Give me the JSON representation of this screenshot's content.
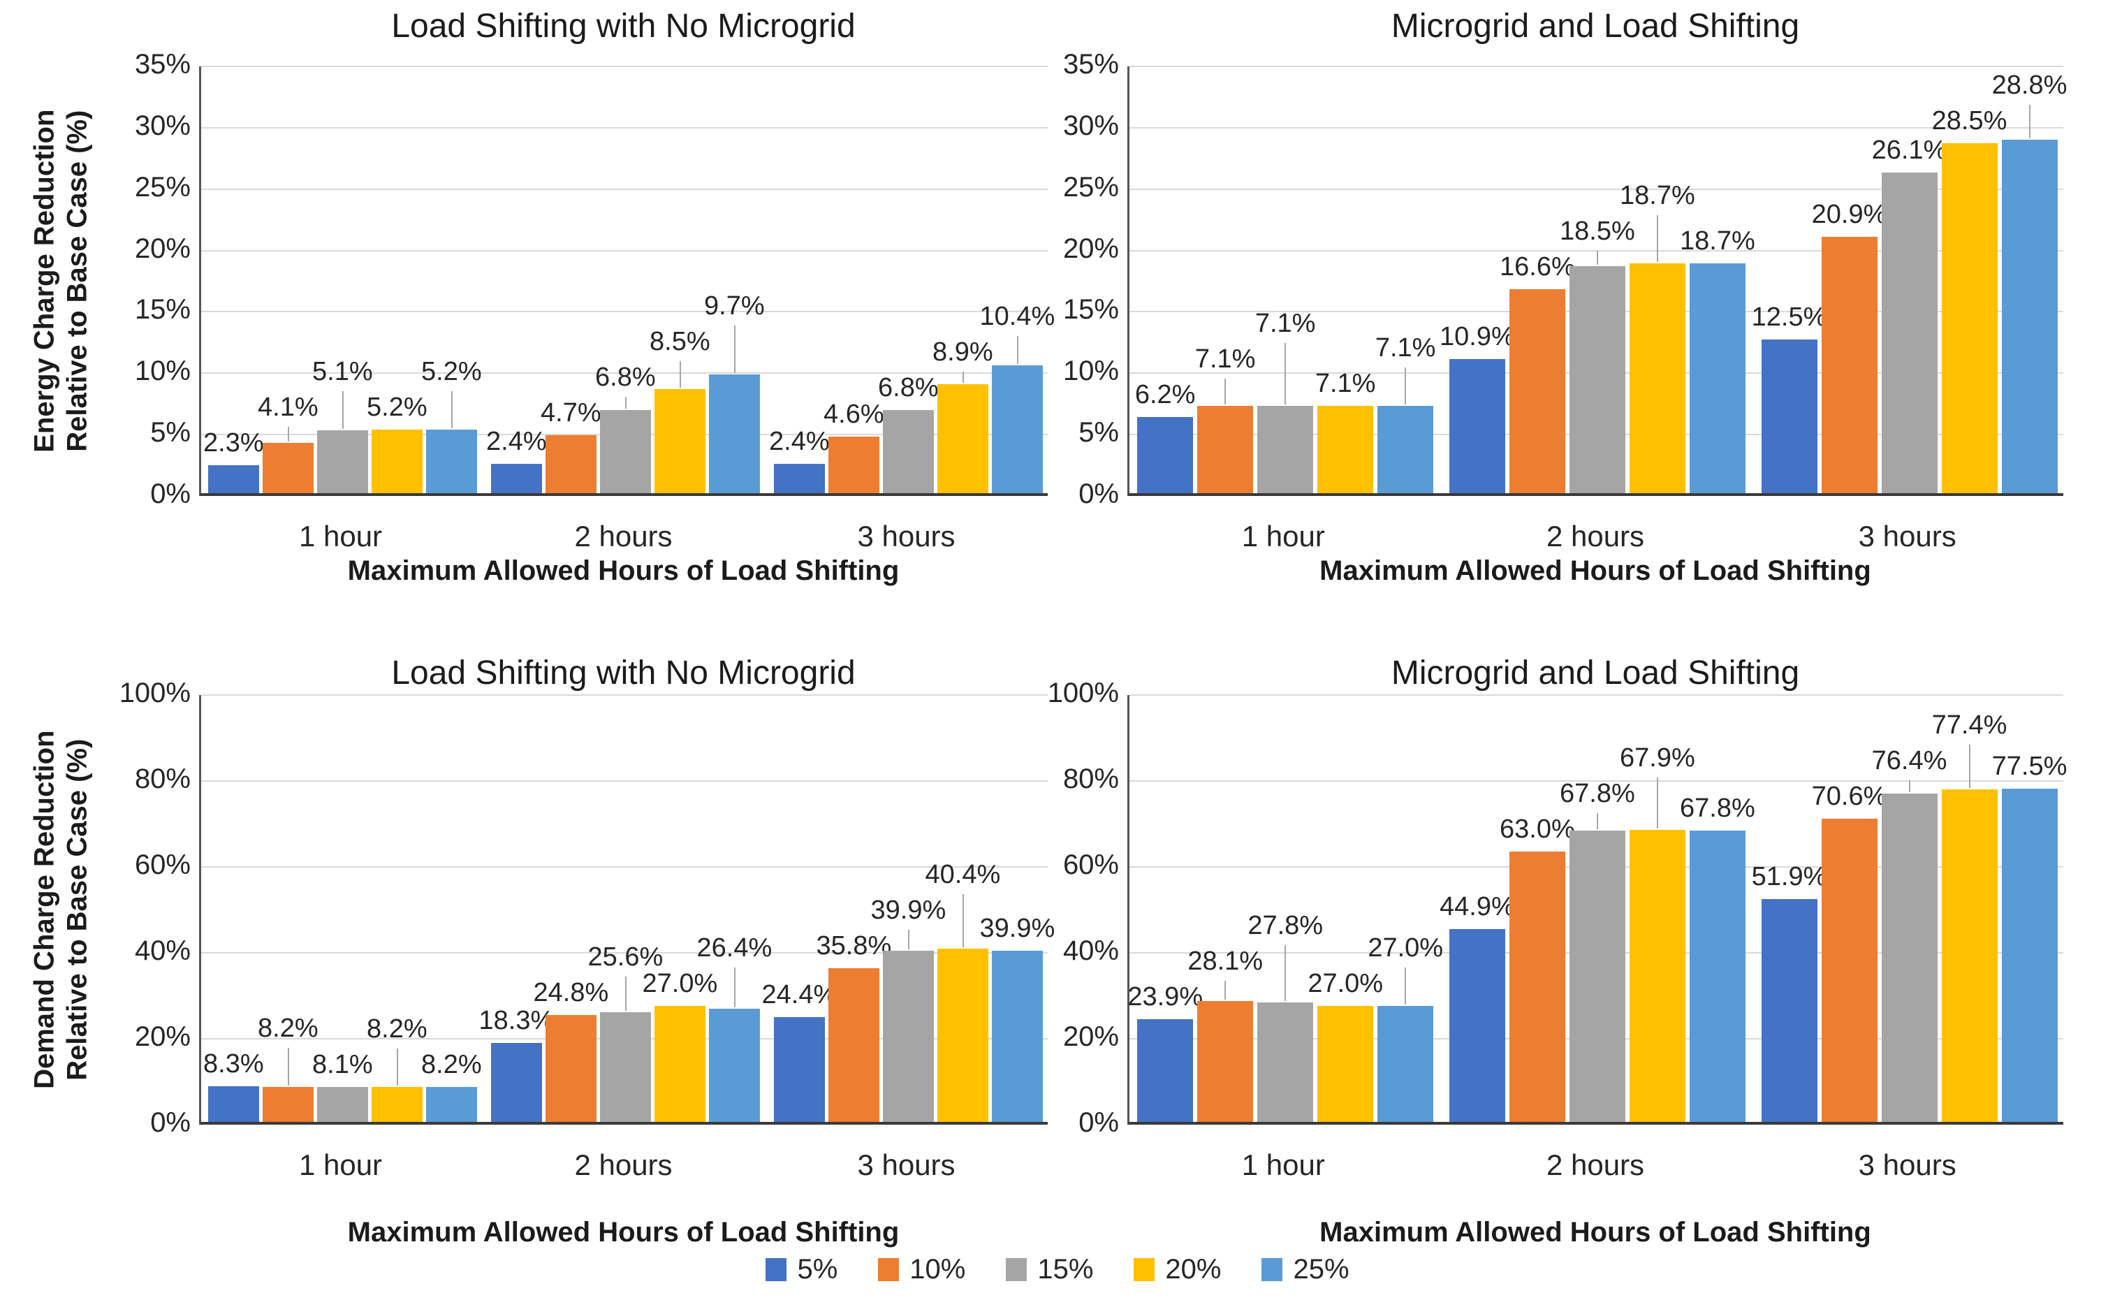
{
  "page": {
    "background": "#FFFFFF"
  },
  "legend": [
    {
      "label": "5%",
      "color": "#4472C4"
    },
    {
      "label": "10%",
      "color": "#ED7D31"
    },
    {
      "label": "15%",
      "color": "#A5A5A5"
    },
    {
      "label": "20%",
      "color": "#FFC000"
    },
    {
      "label": "25%",
      "color": "#5B9BD5"
    }
  ],
  "legend_position": "bottom",
  "chart_data": [
    {
      "type": "bar",
      "position": "top-left",
      "title": "Load Shifting with No Microgrid",
      "ylabel": "Energy Charge Reduction Relative to Base Case (%)",
      "xlabel": "Maximum Allowed Hours of Load Shifting",
      "ylim": [
        0,
        35
      ],
      "ytick_step": 5,
      "grid": true,
      "categories": [
        "1 hour",
        "2 hours",
        "3 hours"
      ],
      "series": [
        {
          "name": "5%",
          "values": [
            2.3,
            2.4,
            2.4
          ]
        },
        {
          "name": "10%",
          "values": [
            4.1,
            4.7,
            4.6
          ]
        },
        {
          "name": "15%",
          "values": [
            5.1,
            6.8,
            6.8
          ]
        },
        {
          "name": "20%",
          "values": [
            5.2,
            8.5,
            8.9
          ]
        },
        {
          "name": "25%",
          "values": [
            5.2,
            9.7,
            10.4
          ]
        }
      ]
    },
    {
      "type": "bar",
      "position": "top-right",
      "title": "Microgrid and Load Shifting",
      "ylabel": "",
      "xlabel": "Maximum Allowed Hours of Load Shifting",
      "ylim": [
        0,
        35
      ],
      "ytick_step": 5,
      "grid": true,
      "categories": [
        "1 hour",
        "2 hours",
        "3 hours"
      ],
      "series": [
        {
          "name": "5%",
          "values": [
            6.2,
            10.9,
            12.5
          ]
        },
        {
          "name": "10%",
          "values": [
            7.1,
            16.6,
            20.9
          ]
        },
        {
          "name": "15%",
          "values": [
            7.1,
            18.5,
            26.1
          ]
        },
        {
          "name": "20%",
          "values": [
            7.1,
            18.7,
            28.5
          ]
        },
        {
          "name": "25%",
          "values": [
            7.1,
            18.7,
            28.8
          ]
        }
      ]
    },
    {
      "type": "bar",
      "position": "bottom-left",
      "title": "Load Shifting with No Microgrid",
      "ylabel": "Demand Charge Reduction Relative to Base Case (%)",
      "xlabel": "Maximum Allowed Hours of Load Shifting",
      "ylim": [
        0,
        100
      ],
      "ytick_step": 20,
      "grid": true,
      "categories": [
        "1 hour",
        "2 hours",
        "3 hours"
      ],
      "series": [
        {
          "name": "5%",
          "values": [
            8.3,
            18.3,
            24.4
          ]
        },
        {
          "name": "10%",
          "values": [
            8.2,
            24.8,
            35.8
          ]
        },
        {
          "name": "15%",
          "values": [
            8.1,
            25.6,
            39.9
          ]
        },
        {
          "name": "20%",
          "values": [
            8.2,
            27.0,
            40.4
          ]
        },
        {
          "name": "25%",
          "values": [
            8.2,
            26.4,
            39.9
          ]
        }
      ]
    },
    {
      "type": "bar",
      "position": "bottom-right",
      "title": "Microgrid and Load Shifting",
      "ylabel": "",
      "xlabel": "Maximum Allowed Hours of Load Shifting",
      "ylim": [
        0,
        100
      ],
      "ytick_step": 20,
      "grid": true,
      "categories": [
        "1 hour",
        "2 hours",
        "3 hours"
      ],
      "series": [
        {
          "name": "5%",
          "values": [
            23.9,
            44.9,
            51.9
          ]
        },
        {
          "name": "10%",
          "values": [
            28.1,
            63.0,
            70.6
          ]
        },
        {
          "name": "15%",
          "values": [
            27.8,
            67.8,
            76.4
          ]
        },
        {
          "name": "20%",
          "values": [
            27.0,
            67.9,
            77.4
          ]
        },
        {
          "name": "25%",
          "values": [
            27.0,
            67.8,
            77.5
          ]
        }
      ]
    }
  ]
}
